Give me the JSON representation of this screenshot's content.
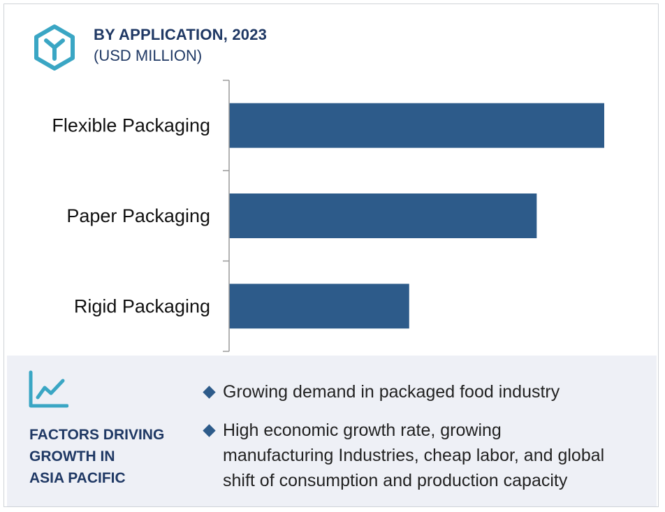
{
  "header": {
    "title": "BY APPLICATION, 2023",
    "subtitle": "(USD MILLION)",
    "icon": "hexagon-logo-icon"
  },
  "colors": {
    "bar": "#2d5b8a",
    "title": "#1f3864",
    "icon_teal": "#3aa6c4",
    "panel_bg": "#eef0f6"
  },
  "chart_data": {
    "type": "bar",
    "orientation": "horizontal",
    "title": "BY APPLICATION, 2023",
    "subtitle": "(USD MILLION)",
    "categories": [
      "Flexible Packaging",
      "Paper Packaging",
      "Rigid Packaging"
    ],
    "values": [
      100,
      82,
      48
    ],
    "xlim": [
      0,
      100
    ],
    "grid": false,
    "legend": "none",
    "value_axis_labels": false
  },
  "factors": {
    "icon": "line-chart-icon",
    "heading_lines": [
      "FACTORS DRIVING",
      "GROWTH IN",
      "ASIA PACIFIC"
    ],
    "bullets": [
      {
        "lines": [
          "Growing demand in packaged food industry"
        ]
      },
      {
        "lines": [
          "High economic growth rate, growing",
          "manufacturing Industries, cheap labor, and global",
          "shift of consumption and production capacity"
        ]
      }
    ]
  }
}
